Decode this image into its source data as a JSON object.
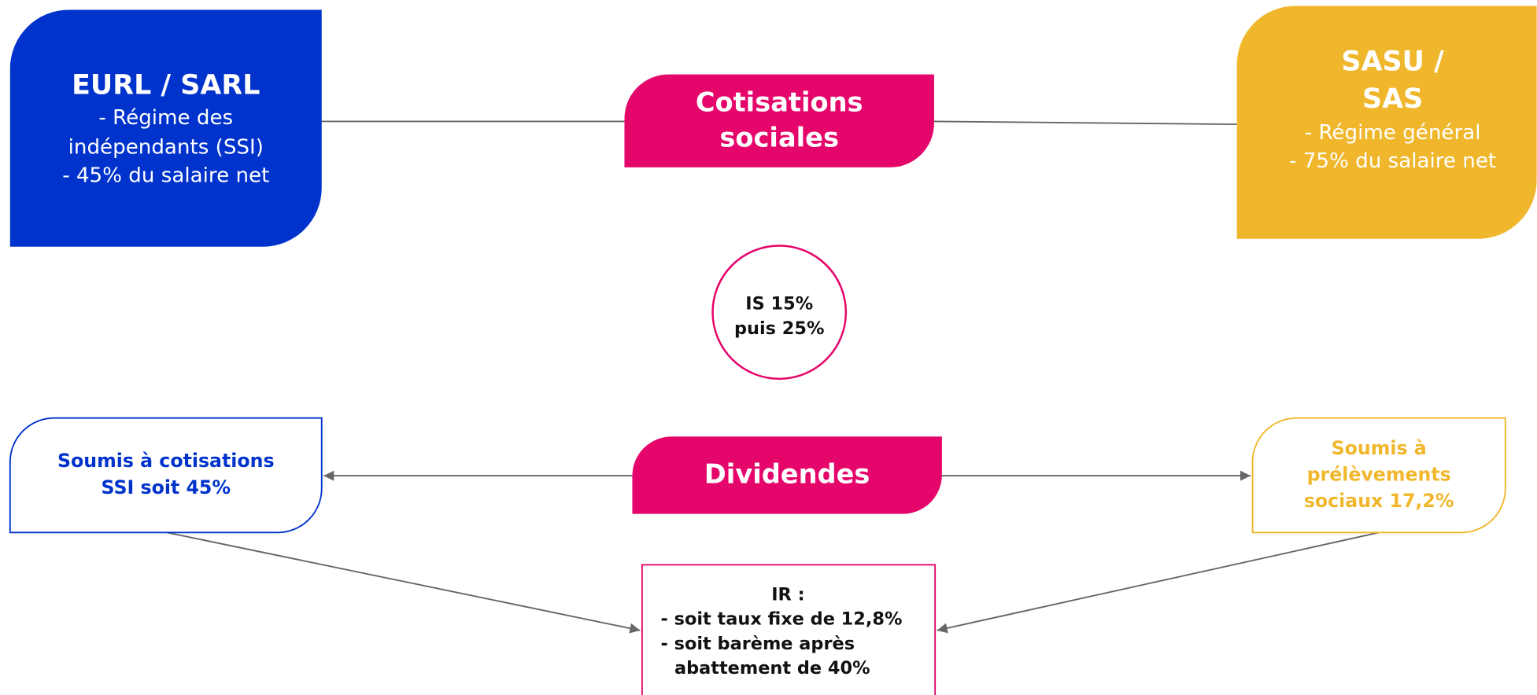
{
  "nodes": [
    {
      "title": [
        "EURL / SARL"
      ],
      "lines": [
        "- Régime des",
        "indépendants (SSI)",
        "- 45% du salaire net"
      ]
    },
    {
      "title": [
        "Cotisations",
        "sociales"
      ]
    },
    {
      "title": [
        "SASU /",
        "SAS"
      ],
      "lines": [
        "- Régime général",
        "- 75% du salaire net"
      ]
    },
    {
      "title": [
        "IS 15%",
        "puis 25%"
      ]
    },
    {
      "title": [
        "Soumis à cotisations",
        "SSI soit 45%"
      ]
    },
    {
      "title": [
        "Dividendes"
      ]
    },
    {
      "title": [
        "Soumis à",
        "prélèvements",
        "sociaux 17,2%"
      ]
    },
    {
      "title": [
        "IR :"
      ],
      "lines": [
        "- soit taux fixe de 12,8%",
        "- soit barème après",
        "abattement de 40%"
      ]
    }
  ]
}
